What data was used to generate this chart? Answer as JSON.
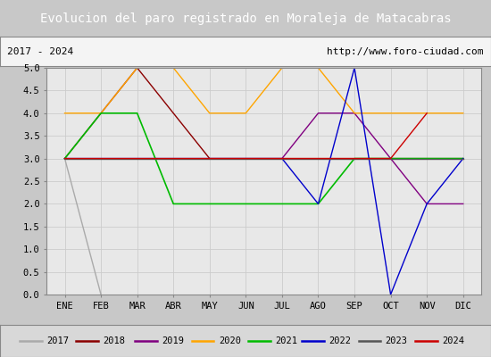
{
  "title": "Evolucion del paro registrado en Moraleja de Matacabras",
  "subtitle_left": "2017 - 2024",
  "subtitle_right": "http://www.foro-ciudad.com",
  "months": [
    "ENE",
    "FEB",
    "MAR",
    "ABR",
    "MAY",
    "JUN",
    "JUL",
    "AGO",
    "SEP",
    "OCT",
    "NOV",
    "DIC"
  ],
  "ylim": [
    0.0,
    5.0
  ],
  "yticks": [
    0.0,
    0.5,
    1.0,
    1.5,
    2.0,
    2.5,
    3.0,
    3.5,
    4.0,
    4.5,
    5.0
  ],
  "series": {
    "2017": {
      "color": "#aaaaaa",
      "linewidth": 1.0,
      "linestyle": "-",
      "values": [
        3,
        0,
        null,
        null,
        null,
        null,
        null,
        null,
        null,
        null,
        null,
        null
      ]
    },
    "2018": {
      "color": "#8b0000",
      "linewidth": 1.0,
      "linestyle": "-",
      "values": [
        3,
        4,
        5,
        4,
        3,
        3,
        3,
        3,
        3,
        3,
        3,
        3
      ]
    },
    "2019": {
      "color": "#800080",
      "linewidth": 1.0,
      "linestyle": "-",
      "values": [
        3,
        3,
        3,
        3,
        3,
        3,
        3,
        4,
        4,
        3,
        2,
        2
      ]
    },
    "2020": {
      "color": "#ffa500",
      "linewidth": 1.0,
      "linestyle": "-",
      "values": [
        4,
        4,
        5,
        5,
        4,
        4,
        5,
        5,
        4,
        4,
        4,
        4
      ]
    },
    "2021": {
      "color": "#00bb00",
      "linewidth": 1.2,
      "linestyle": "-",
      "values": [
        3,
        4,
        4,
        2,
        2,
        2,
        2,
        2,
        3,
        3,
        3,
        3
      ]
    },
    "2022": {
      "color": "#0000cc",
      "linewidth": 1.0,
      "linestyle": "-",
      "values": [
        3,
        3,
        3,
        3,
        3,
        3,
        3,
        2,
        5,
        0,
        2,
        3
      ]
    },
    "2023": {
      "color": "#555555",
      "linewidth": 1.0,
      "linestyle": "-",
      "values": [
        3,
        3,
        3,
        3,
        3,
        3,
        3,
        3,
        3,
        3,
        3,
        3
      ]
    },
    "2024": {
      "color": "#cc0000",
      "linewidth": 1.0,
      "linestyle": "-",
      "values": [
        3,
        3,
        3,
        3,
        3,
        3,
        3,
        3,
        3,
        3,
        4,
        null
      ]
    }
  },
  "title_bg": "#5b9bd5",
  "title_color": "white",
  "title_fontsize": 10,
  "plot_bg": "#e8e8e8",
  "grid_color": "#cccccc",
  "legend_years": [
    "2017",
    "2018",
    "2019",
    "2020",
    "2021",
    "2022",
    "2023",
    "2024"
  ],
  "legend_colors": [
    "#aaaaaa",
    "#8b0000",
    "#800080",
    "#ffa500",
    "#00bb00",
    "#0000cc",
    "#555555",
    "#cc0000"
  ],
  "legend_linestyles": [
    "-",
    "-",
    "-",
    "-",
    "-",
    "-",
    "-",
    "-"
  ]
}
